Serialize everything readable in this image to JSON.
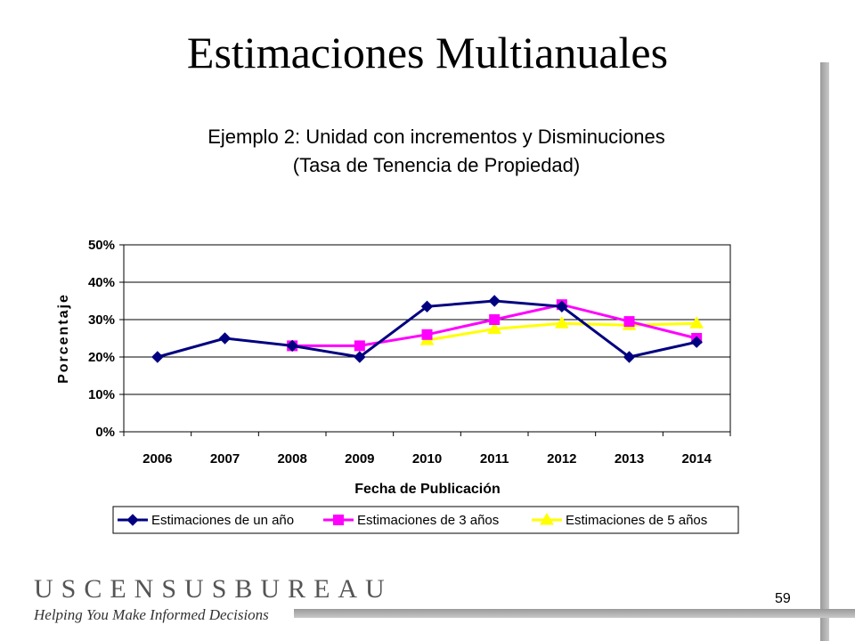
{
  "slide": {
    "title": "Estimaciones Multianuales",
    "page_number": "59"
  },
  "logo": {
    "name": "USCENSUSBUREAU",
    "tagline": "Helping You Make Informed Decisions"
  },
  "chart_data": {
    "type": "line",
    "title_line1": "Ejemplo 2:  Unidad con incrementos y Disminuciones",
    "title_line2": "(Tasa de Tenencia de Propiedad)",
    "xlabel": "Fecha de Publicación",
    "ylabel": "Porcentaje",
    "categories": [
      "2006",
      "2007",
      "2008",
      "2009",
      "2010",
      "2011",
      "2012",
      "2013",
      "2014"
    ],
    "y_ticks": [
      "0%",
      "10%",
      "20%",
      "30%",
      "40%",
      "50%"
    ],
    "ylim": [
      0,
      50
    ],
    "grid": "horizontal",
    "legend_position": "bottom",
    "series": [
      {
        "name": "Estimaciones de un año",
        "color": "#000080",
        "marker": "diamond",
        "values": [
          20,
          25,
          23,
          20,
          33.5,
          35,
          33.5,
          20,
          24
        ]
      },
      {
        "name": "Estimaciones de 3 años",
        "color": "#ff00ff",
        "marker": "square",
        "values": [
          null,
          null,
          23,
          23,
          26,
          30,
          34,
          29.5,
          25
        ]
      },
      {
        "name": "Estimaciones de 5 años",
        "color": "#ffff00",
        "marker": "triangle",
        "values": [
          null,
          null,
          null,
          null,
          24.5,
          27.5,
          29,
          28.5,
          29
        ]
      }
    ]
  }
}
